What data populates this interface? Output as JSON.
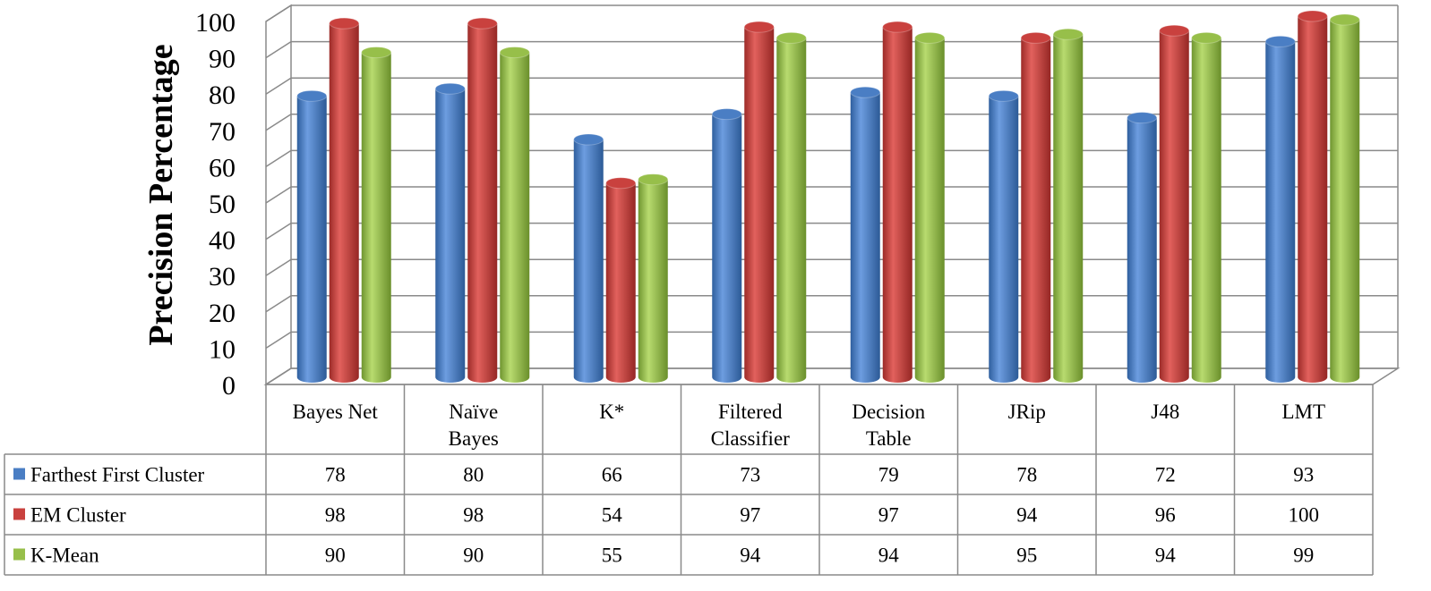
{
  "chart_data": {
    "type": "bar",
    "ylabel": "Precision Percentage",
    "xlabel": "",
    "title": "",
    "ylim": [
      0,
      100
    ],
    "yticks": [
      0,
      10,
      20,
      30,
      40,
      50,
      60,
      70,
      80,
      90,
      100
    ],
    "grid": true,
    "legend_position": "data-table-left",
    "categories": [
      [
        "Bayes Net"
      ],
      [
        "Naïve",
        "Bayes"
      ],
      [
        "K*"
      ],
      [
        "Filtered",
        "Classifier"
      ],
      [
        "Decision",
        "Table"
      ],
      [
        "JRip"
      ],
      [
        "J48"
      ],
      [
        "LMT"
      ]
    ],
    "series": [
      {
        "name": "Farthest First Cluster",
        "color": "#4a7ec4",
        "values": [
          78,
          80,
          66,
          73,
          79,
          78,
          72,
          93
        ]
      },
      {
        "name": "EM Cluster",
        "color": "#c9413e",
        "values": [
          98,
          98,
          54,
          97,
          97,
          94,
          96,
          100
        ]
      },
      {
        "name": "K-Mean",
        "color": "#97bf4a",
        "values": [
          90,
          90,
          55,
          94,
          94,
          95,
          94,
          99
        ]
      }
    ]
  }
}
